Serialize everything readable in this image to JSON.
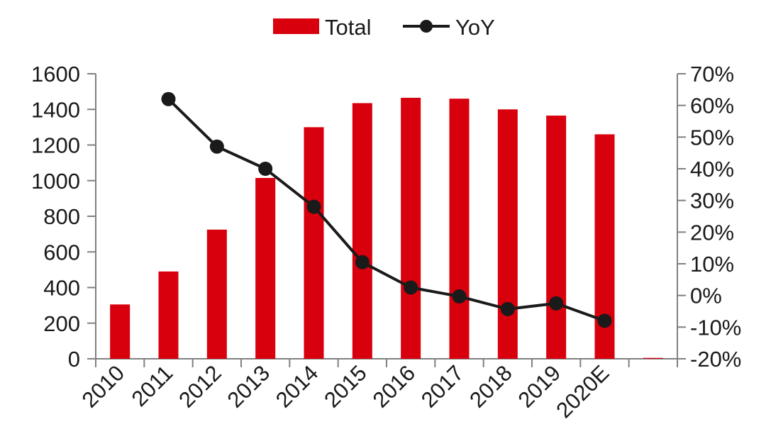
{
  "chart_data": {
    "type": "bar",
    "categories": [
      "2010",
      "2011",
      "2012",
      "2013",
      "2014",
      "2015",
      "2016",
      "2017",
      "2018",
      "2019",
      "2020E",
      ""
    ],
    "series": [
      {
        "name": "Total",
        "type": "bar",
        "axis": "left",
        "color": "#d9000d",
        "values": [
          305,
          490,
          725,
          1015,
          1300,
          1435,
          1465,
          1460,
          1400,
          1365,
          1260,
          5
        ]
      },
      {
        "name": "YoY",
        "type": "line",
        "axis": "right",
        "color": "#1a1a1a",
        "values": [
          null,
          0.62,
          0.47,
          0.4,
          0.28,
          0.105,
          0.025,
          -0.003,
          -0.043,
          -0.025,
          -0.08,
          null
        ]
      }
    ],
    "ylim_left": [
      0,
      1600
    ],
    "yticks_left": [
      "0",
      "200",
      "400",
      "600",
      "800",
      "1000",
      "1200",
      "1400",
      "1600"
    ],
    "ylim_right": [
      -0.2,
      0.7
    ],
    "yticks_right": [
      "-20%",
      "-10%",
      "0%",
      "10%",
      "20%",
      "30%",
      "40%",
      "50%",
      "60%",
      "70%"
    ],
    "legend": {
      "position": "top-center",
      "items": [
        {
          "label": "Total",
          "marker": "bar"
        },
        {
          "label": "YoY",
          "marker": "line-dot"
        }
      ]
    },
    "grid": false
  }
}
